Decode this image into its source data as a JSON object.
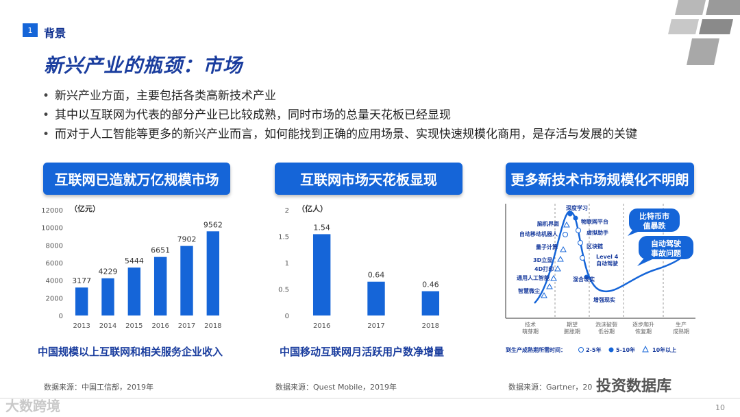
{
  "header": {
    "section_number": "1",
    "section_label": "背景",
    "title": "新兴产业的瓶颈：市场"
  },
  "bullets": [
    "新兴产业方面，主要包括各类高新技术产业",
    "其中以互联网为代表的部分产业已比较成熟，同时市场的总量天花板已经显现",
    "而对于人工智能等更多的新兴产业而言，如何能找到正确的应用场景、实现快速规模化商用，是存活与发展的关键"
  ],
  "panels": [
    {
      "title": "互联网已造就万亿规模市场",
      "caption": "中国规模以上互联网和相关服务企业收入",
      "source": "数据来源：中国工信部，2019年"
    },
    {
      "title": "互联网市场天花板显现",
      "caption": "中国移动互联网月活跃用户数净增量",
      "source": "数据来源：Quest Mobile，2019年"
    },
    {
      "title": "更多新技术市场规模化不明朗",
      "caption": "",
      "source": "数据来源：Gartner，20"
    }
  ],
  "chart_data": [
    {
      "type": "bar",
      "unit": "（亿元）",
      "categories": [
        "2013",
        "2014",
        "2015",
        "2016",
        "2017",
        "2018"
      ],
      "values": [
        3177,
        4229,
        5444,
        6651,
        7902,
        9562
      ],
      "value_labels": [
        "3177",
        "4229",
        "5444",
        "6651",
        "7902",
        "9562"
      ],
      "y_ticks": [
        "0",
        "2000",
        "4000",
        "6000",
        "8000",
        "10000",
        "12000"
      ],
      "ylim": [
        0,
        12000
      ],
      "color": "#1565d8"
    },
    {
      "type": "bar",
      "unit": "（亿人）",
      "categories": [
        "2016",
        "2017",
        "2018"
      ],
      "values": [
        1.54,
        0.64,
        0.46
      ],
      "value_labels": [
        "1.54",
        "0.64",
        "0.46"
      ],
      "y_ticks": [
        "0",
        "0.5",
        "1",
        "1.5",
        "2"
      ],
      "ylim": [
        0,
        2
      ],
      "color": "#1565d8"
    },
    {
      "type": "line",
      "name": "hype-cycle",
      "points_label": "Gartner hype cycle",
      "phases": [
        "技术\n萌芽期",
        "期望\n膨胀期",
        "泡沫破裂\n低谷期",
        "逐步爬升\n恢复期",
        "生产\n成熟期"
      ],
      "technologies": [
        {
          "label": "深度学习",
          "marker": "dot"
        },
        {
          "label": "物联网平台",
          "marker": "dot"
        },
        {
          "label": "脑机界面",
          "marker": "triangle"
        },
        {
          "label": "虚拟助手",
          "marker": "circle"
        },
        {
          "label": "自动移动机器人",
          "marker": "circle"
        },
        {
          "label": "量子计算",
          "marker": "triangle"
        },
        {
          "label": "区块链",
          "marker": "circle"
        },
        {
          "label": "Level 4\n自动驾驶",
          "marker": "circle"
        },
        {
          "label": "3D立显",
          "marker": "triangle"
        },
        {
          "label": "4D打印",
          "marker": "triangle"
        },
        {
          "label": "通用人工智能",
          "marker": "triangle"
        },
        {
          "label": "混合现实",
          "marker": "dot"
        },
        {
          "label": "智慧微尘",
          "marker": "triangle"
        },
        {
          "label": "增强现实",
          "marker": "dot"
        }
      ],
      "callouts": [
        "比特币市\n值暴跌",
        "自动驾驶\n事故问题"
      ],
      "legend_title": "到生产成熟期所需时间：",
      "legend_items": [
        {
          "marker": "circle",
          "label": "2-5年"
        },
        {
          "marker": "dot",
          "label": "5-10年"
        },
        {
          "marker": "triangle",
          "label": "10年以上"
        }
      ]
    }
  ],
  "footer": {
    "page_number": "10",
    "watermark_left": "大数跨境",
    "watermark_right": "投资数据库"
  },
  "colors": {
    "accent": "#1565d8",
    "title": "#1a3d9e"
  }
}
